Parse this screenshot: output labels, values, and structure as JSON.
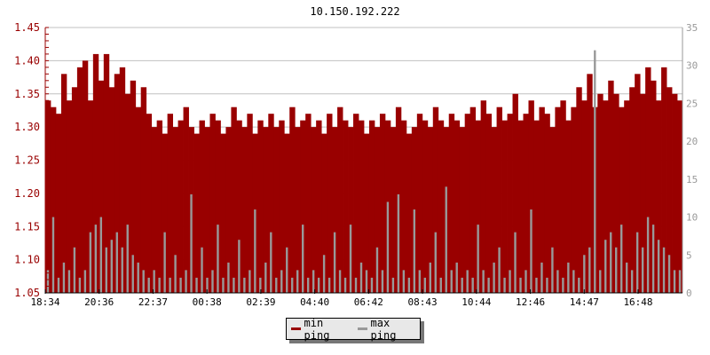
{
  "chart_data": {
    "type": "bar",
    "title": "10.150.192.222",
    "x_tick_labels": [
      "18:34",
      "20:36",
      "22:37",
      "00:38",
      "02:39",
      "04:40",
      "06:42",
      "08:43",
      "10:44",
      "12:46",
      "14:47",
      "16:48"
    ],
    "y_left": {
      "ylim": [
        1.05,
        1.45
      ],
      "ticks": [
        "1.05",
        "1.10",
        "1.15",
        "1.20",
        "1.25",
        "1.30",
        "1.35",
        "1.40",
        "1.45"
      ]
    },
    "y_right": {
      "ylim": [
        0,
        35
      ],
      "ticks": [
        "0",
        "5",
        "10",
        "15",
        "20",
        "25",
        "30",
        "35"
      ]
    },
    "grid": true,
    "legend_position": "bottom",
    "series": [
      {
        "name": "min ping",
        "axis": "left",
        "color": "#990000",
        "values": [
          1.34,
          1.33,
          1.32,
          1.38,
          1.34,
          1.36,
          1.39,
          1.4,
          1.34,
          1.41,
          1.37,
          1.41,
          1.36,
          1.38,
          1.39,
          1.35,
          1.37,
          1.33,
          1.36,
          1.32,
          1.3,
          1.31,
          1.29,
          1.32,
          1.3,
          1.31,
          1.33,
          1.3,
          1.29,
          1.31,
          1.3,
          1.32,
          1.31,
          1.29,
          1.3,
          1.33,
          1.31,
          1.3,
          1.32,
          1.29,
          1.31,
          1.3,
          1.32,
          1.3,
          1.31,
          1.29,
          1.33,
          1.3,
          1.31,
          1.32,
          1.3,
          1.31,
          1.29,
          1.32,
          1.3,
          1.33,
          1.31,
          1.3,
          1.32,
          1.31,
          1.29,
          1.31,
          1.3,
          1.32,
          1.31,
          1.3,
          1.33,
          1.31,
          1.29,
          1.3,
          1.32,
          1.31,
          1.3,
          1.33,
          1.31,
          1.3,
          1.32,
          1.31,
          1.3,
          1.32,
          1.33,
          1.31,
          1.34,
          1.32,
          1.3,
          1.33,
          1.31,
          1.32,
          1.35,
          1.31,
          1.32,
          1.34,
          1.31,
          1.33,
          1.32,
          1.3,
          1.33,
          1.34,
          1.31,
          1.33,
          1.36,
          1.34,
          1.38,
          1.33,
          1.35,
          1.34,
          1.37,
          1.35,
          1.33,
          1.34,
          1.36,
          1.38,
          1.35,
          1.39,
          1.37,
          1.34,
          1.39,
          1.36,
          1.35,
          1.34
        ]
      },
      {
        "name": "max ping",
        "axis": "right",
        "color": "#999999",
        "values": [
          3,
          10,
          2,
          4,
          3,
          6,
          2,
          3,
          8,
          9,
          10,
          6,
          7,
          8,
          6,
          9,
          5,
          4,
          3,
          2,
          3,
          2,
          8,
          2,
          5,
          2,
          3,
          13,
          2,
          6,
          2,
          3,
          9,
          2,
          4,
          2,
          7,
          2,
          3,
          11,
          2,
          4,
          8,
          2,
          3,
          6,
          2,
          3,
          9,
          2,
          3,
          2,
          5,
          2,
          8,
          3,
          2,
          9,
          2,
          4,
          3,
          2,
          6,
          3,
          12,
          2,
          13,
          3,
          2,
          11,
          3,
          2,
          4,
          8,
          2,
          14,
          3,
          4,
          2,
          3,
          2,
          9,
          3,
          2,
          4,
          6,
          2,
          3,
          8,
          2,
          3,
          11,
          2,
          4,
          2,
          6,
          3,
          2,
          4,
          3,
          2,
          5,
          6,
          32,
          3,
          7,
          8,
          6,
          9,
          4,
          3,
          8,
          6,
          10,
          9,
          7,
          6,
          5,
          3,
          3
        ]
      }
    ]
  }
}
